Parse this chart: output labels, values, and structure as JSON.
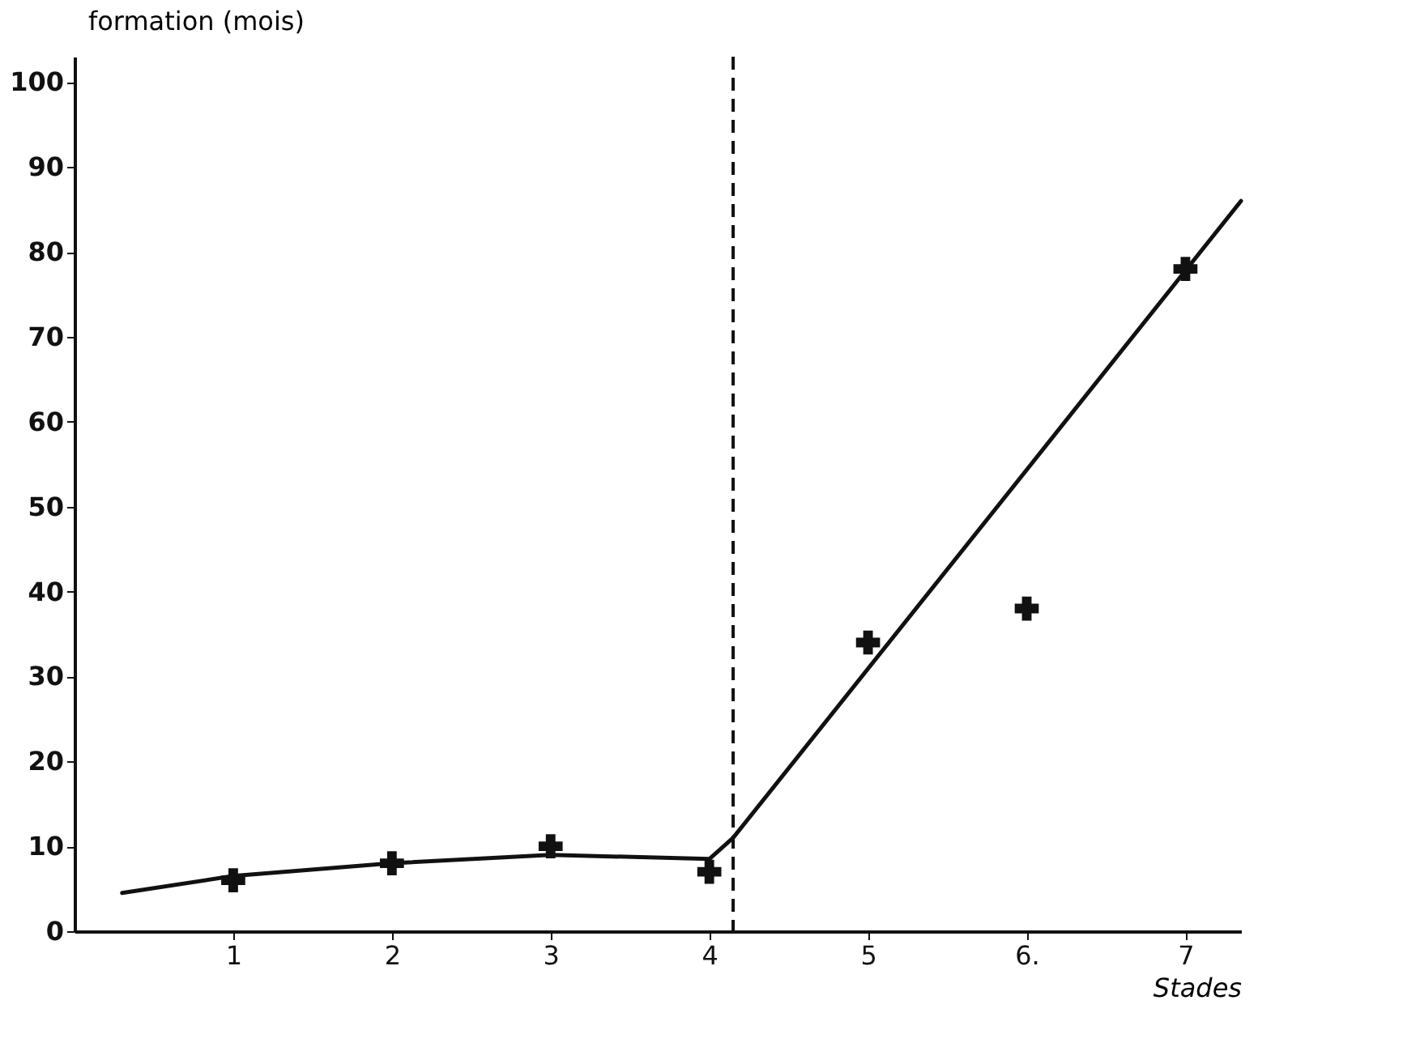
{
  "chart_data": {
    "type": "scatter",
    "xlabel": "Stades",
    "ylabel": "formation (mois)",
    "xlim": [
      0,
      7.35
    ],
    "ylim": [
      0,
      103
    ],
    "xticks": [
      1,
      2,
      3,
      4,
      5,
      {
        "value": 6,
        "label": "6."
      },
      7
    ],
    "yticks": [
      0,
      10,
      20,
      30,
      40,
      50,
      60,
      70,
      80,
      90,
      100
    ],
    "grid": false,
    "legend": false,
    "series": [
      {
        "color": "#111111",
        "marker": "cross",
        "x": [
          1,
          2,
          3,
          4,
          5,
          6,
          7
        ],
        "values": [
          6,
          8,
          10,
          7,
          34,
          38,
          78
        ]
      },
      {
        "type": "line",
        "color": "#111111",
        "line_style": "solid",
        "x": [
          0.3,
          1,
          2,
          3,
          4,
          4.15,
          7.35
        ],
        "values": [
          4.5,
          6.5,
          8,
          9,
          8.5,
          11,
          86
        ]
      }
    ],
    "ref_lines": [
      {
        "axis": "x",
        "value": 4.15,
        "color": "#111111",
        "line_style": "dashed"
      }
    ]
  }
}
